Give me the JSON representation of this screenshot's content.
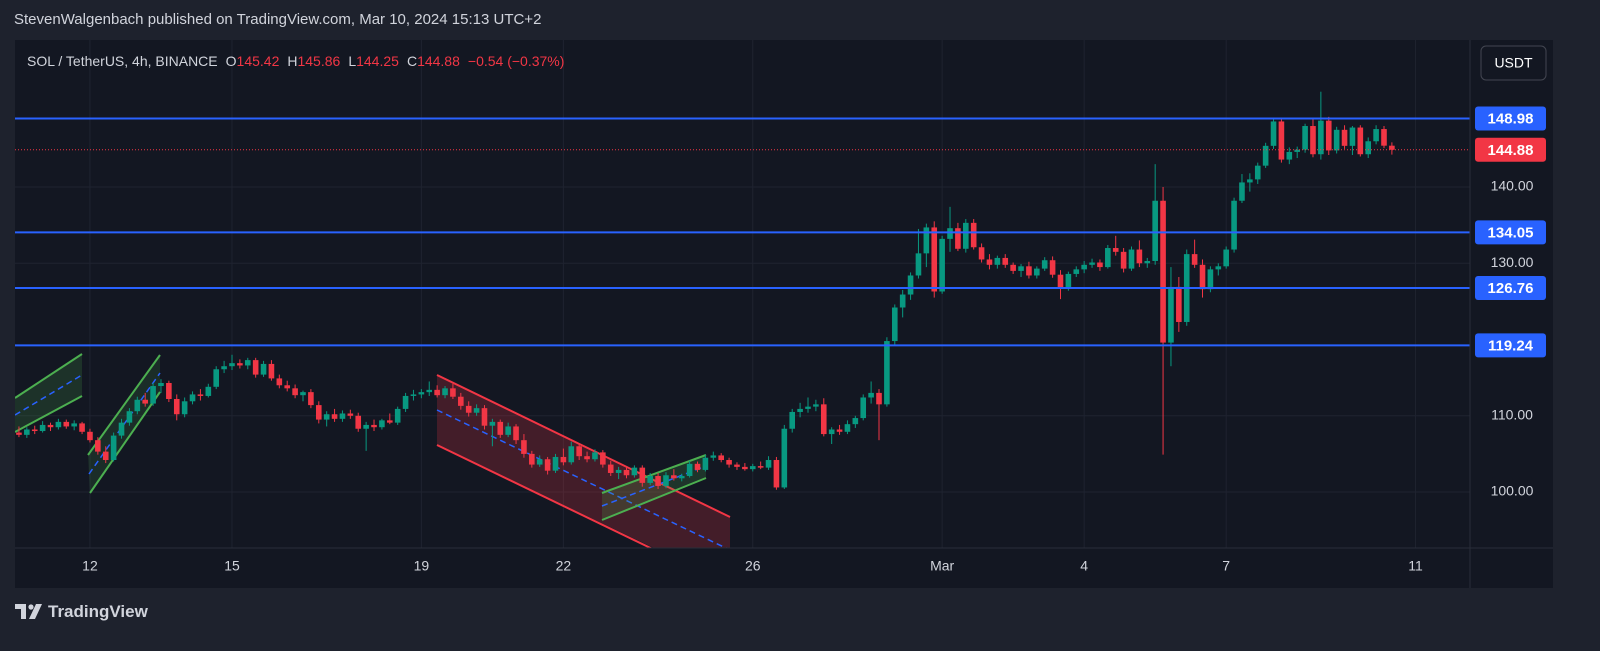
{
  "header": {
    "publisher": "StevenWalgenbach published on TradingView.com, Mar 10, 2024 15:13 UTC+2"
  },
  "chart_data": {
    "type": "candlestick",
    "legend": {
      "symbol": "SOL / TetherUS, 4h, BINANCE",
      "open_label": "O",
      "open": 145.42,
      "high_label": "H",
      "high": 145.86,
      "low_label": "L",
      "low": 144.25,
      "close_label": "C",
      "close": 144.88,
      "change": "−0.54 (−0.37%)"
    },
    "currency": "USDT",
    "up_color": "#089981",
    "down_color": "#f23645",
    "level_color": "#2962ff",
    "grid": true,
    "xlim": [
      0,
      184.4
    ],
    "xticks": [
      {
        "value": 9.5,
        "label": "12"
      },
      {
        "value": 27.5,
        "label": "15"
      },
      {
        "value": 51.5,
        "label": "19"
      },
      {
        "value": 69.5,
        "label": "22"
      },
      {
        "value": 93.5,
        "label": "26"
      },
      {
        "value": 117.5,
        "label": "Mar"
      },
      {
        "value": 135.5,
        "label": "4"
      },
      {
        "value": 153.5,
        "label": "7"
      },
      {
        "value": 177.5,
        "label": "11"
      }
    ],
    "ylim": [
      92.66,
      159.28
    ],
    "yticks": [
      {
        "value": 100,
        "label": "100.00"
      },
      {
        "value": 110,
        "label": "110.00"
      },
      {
        "value": 130,
        "label": "130.00"
      },
      {
        "value": 140,
        "label": "140.00"
      }
    ],
    "levels": [
      148.98,
      134.05,
      126.76,
      119.24
    ],
    "last_price": 144.88,
    "ohlc": [
      [
        107.8,
        108.6,
        107.2,
        107.5
      ],
      [
        107.5,
        108.5,
        107.1,
        108.2
      ],
      [
        108.2,
        108.7,
        107.6,
        108.0
      ],
      [
        108.0,
        109.3,
        107.8,
        108.8
      ],
      [
        108.8,
        109.1,
        108.0,
        108.5
      ],
      [
        108.5,
        109.6,
        108.2,
        109.2
      ],
      [
        109.2,
        109.5,
        108.3,
        108.6
      ],
      [
        108.6,
        109.4,
        108.1,
        109.0
      ],
      [
        109.0,
        109.2,
        107.6,
        107.9
      ],
      [
        107.9,
        108.3,
        106.5,
        106.8
      ],
      [
        106.8,
        107.2,
        104.9,
        105.3
      ],
      [
        105.3,
        106.0,
        103.8,
        104.2
      ],
      [
        104.2,
        107.8,
        104.0,
        107.4
      ],
      [
        107.4,
        109.6,
        107.0,
        109.1
      ],
      [
        109.1,
        111.0,
        108.7,
        110.6
      ],
      [
        110.6,
        112.5,
        110.2,
        112.1
      ],
      [
        112.1,
        113.0,
        111.2,
        111.6
      ],
      [
        111.6,
        114.3,
        111.3,
        113.9
      ],
      [
        113.9,
        114.8,
        113.0,
        114.3
      ],
      [
        114.3,
        114.6,
        111.8,
        112.2
      ],
      [
        112.2,
        112.8,
        109.4,
        110.2
      ],
      [
        110.2,
        112.4,
        109.8,
        111.9
      ],
      [
        111.9,
        113.2,
        111.5,
        112.8
      ],
      [
        112.8,
        113.5,
        112.0,
        112.6
      ],
      [
        112.6,
        114.2,
        112.4,
        113.8
      ],
      [
        113.8,
        116.5,
        113.5,
        116.1
      ],
      [
        116.1,
        117.2,
        115.6,
        116.5
      ],
      [
        116.5,
        118.0,
        116.0,
        116.9
      ],
      [
        116.9,
        117.4,
        116.2,
        116.6
      ],
      [
        116.6,
        117.6,
        116.1,
        117.3
      ],
      [
        117.3,
        117.6,
        115.0,
        115.4
      ],
      [
        115.4,
        117.2,
        115.1,
        116.8
      ],
      [
        116.8,
        117.3,
        114.6,
        114.9
      ],
      [
        114.9,
        115.4,
        113.6,
        114.0
      ],
      [
        114.0,
        114.6,
        113.2,
        113.6
      ],
      [
        113.6,
        114.1,
        112.3,
        112.7
      ],
      [
        112.7,
        113.3,
        111.9,
        113.1
      ],
      [
        113.1,
        113.5,
        111.0,
        111.4
      ],
      [
        111.4,
        111.9,
        109.0,
        109.5
      ],
      [
        109.5,
        110.6,
        108.6,
        110.2
      ],
      [
        110.2,
        110.9,
        109.2,
        109.6
      ],
      [
        109.6,
        110.7,
        109.2,
        110.3
      ],
      [
        110.3,
        110.8,
        109.6,
        110.0
      ],
      [
        110.0,
        110.4,
        107.9,
        108.3
      ],
      [
        108.3,
        109.2,
        105.4,
        108.8
      ],
      [
        108.8,
        109.5,
        108.0,
        108.5
      ],
      [
        108.5,
        109.6,
        108.2,
        109.4
      ],
      [
        109.4,
        110.3,
        108.9,
        109.1
      ],
      [
        109.1,
        111.2,
        108.8,
        110.9
      ],
      [
        110.9,
        113.0,
        110.5,
        112.6
      ],
      [
        112.6,
        113.4,
        112.0,
        112.8
      ],
      [
        112.8,
        113.5,
        112.3,
        113.1
      ],
      [
        113.1,
        114.5,
        112.6,
        113.4
      ],
      [
        113.4,
        114.0,
        112.4,
        112.7
      ],
      [
        112.7,
        113.9,
        112.3,
        113.6
      ],
      [
        113.6,
        114.2,
        112.2,
        112.5
      ],
      [
        112.5,
        113.0,
        110.8,
        111.3
      ],
      [
        111.3,
        111.9,
        109.9,
        110.4
      ],
      [
        110.4,
        111.5,
        110.0,
        111.0
      ],
      [
        111.0,
        111.4,
        108.2,
        108.7
      ],
      [
        108.7,
        109.6,
        106.0,
        109.2
      ],
      [
        109.2,
        109.5,
        107.1,
        107.5
      ],
      [
        107.5,
        109.1,
        107.2,
        108.6
      ],
      [
        108.6,
        108.9,
        106.3,
        106.8
      ],
      [
        106.8,
        107.6,
        104.5,
        105.0
      ],
      [
        105.0,
        105.4,
        103.2,
        103.6
      ],
      [
        103.6,
        104.8,
        103.3,
        104.3
      ],
      [
        104.3,
        104.6,
        102.3,
        102.8
      ],
      [
        102.8,
        105.0,
        102.5,
        104.6
      ],
      [
        104.6,
        105.7,
        103.5,
        103.9
      ],
      [
        103.9,
        106.6,
        103.6,
        106.0
      ],
      [
        106.0,
        106.4,
        104.2,
        104.7
      ],
      [
        104.7,
        105.3,
        103.9,
        104.3
      ],
      [
        104.3,
        105.6,
        104.0,
        105.2
      ],
      [
        105.2,
        105.5,
        103.2,
        103.6
      ],
      [
        103.6,
        104.1,
        102.1,
        102.5
      ],
      [
        102.5,
        103.3,
        101.7,
        102.9
      ],
      [
        102.9,
        103.4,
        101.8,
        102.2
      ],
      [
        102.2,
        103.5,
        101.9,
        103.2
      ],
      [
        103.2,
        103.5,
        100.7,
        101.2
      ],
      [
        101.2,
        102.5,
        100.9,
        102.1
      ],
      [
        102.1,
        102.5,
        100.4,
        100.8
      ],
      [
        100.8,
        102.6,
        100.5,
        102.2
      ],
      [
        102.2,
        103.0,
        101.5,
        101.8
      ],
      [
        101.8,
        102.4,
        101.4,
        102.1
      ],
      [
        102.1,
        104.1,
        101.9,
        103.7
      ],
      [
        103.7,
        104.0,
        102.6,
        102.9
      ],
      [
        102.9,
        104.9,
        102.7,
        104.5
      ],
      [
        104.5,
        105.3,
        104.1,
        104.8
      ],
      [
        104.8,
        105.1,
        103.9,
        104.2
      ],
      [
        104.2,
        104.5,
        103.2,
        103.6
      ],
      [
        103.6,
        103.9,
        102.9,
        103.3
      ],
      [
        103.3,
        103.8,
        102.8,
        103.0
      ],
      [
        103.0,
        103.7,
        102.7,
        103.4
      ],
      [
        103.4,
        104.0,
        103.0,
        103.2
      ],
      [
        103.2,
        104.7,
        102.9,
        104.2
      ],
      [
        104.2,
        104.6,
        100.3,
        100.6
      ],
      [
        100.6,
        108.8,
        100.4,
        108.3
      ],
      [
        108.3,
        110.9,
        107.8,
        110.5
      ],
      [
        110.5,
        111.7,
        109.8,
        110.9
      ],
      [
        110.9,
        112.4,
        110.4,
        111.2
      ],
      [
        111.2,
        112.1,
        110.6,
        111.5
      ],
      [
        111.5,
        112.3,
        107.3,
        107.6
      ],
      [
        107.6,
        108.5,
        106.3,
        108.2
      ],
      [
        108.2,
        108.8,
        107.5,
        107.9
      ],
      [
        107.9,
        109.4,
        107.6,
        108.9
      ],
      [
        108.9,
        110.0,
        108.4,
        109.7
      ],
      [
        109.7,
        112.8,
        109.4,
        112.4
      ],
      [
        112.4,
        114.5,
        111.6,
        113.0
      ],
      [
        113.0,
        113.5,
        106.8,
        111.5
      ],
      [
        111.5,
        120.3,
        111.2,
        119.8
      ],
      [
        119.8,
        124.6,
        119.2,
        124.2
      ],
      [
        124.2,
        126.5,
        122.9,
        125.9
      ],
      [
        125.9,
        128.8,
        125.2,
        128.4
      ],
      [
        128.4,
        134.5,
        128.0,
        131.3
      ],
      [
        131.3,
        135.2,
        129.5,
        134.7
      ],
      [
        134.7,
        135.5,
        125.5,
        126.3
      ],
      [
        126.3,
        133.6,
        126.0,
        133.2
      ],
      [
        133.2,
        137.4,
        131.5,
        134.6
      ],
      [
        134.6,
        135.3,
        131.6,
        131.9
      ],
      [
        131.9,
        135.8,
        131.4,
        135.3
      ],
      [
        135.3,
        135.8,
        131.8,
        132.1
      ],
      [
        132.1,
        132.6,
        130.1,
        130.5
      ],
      [
        130.5,
        131.2,
        129.2,
        129.8
      ],
      [
        129.8,
        131.0,
        129.3,
        130.7
      ],
      [
        130.7,
        131.2,
        129.4,
        129.8
      ],
      [
        129.8,
        130.1,
        128.6,
        129.0
      ],
      [
        129.0,
        129.9,
        128.2,
        129.6
      ],
      [
        129.6,
        130.2,
        128.0,
        128.4
      ],
      [
        128.4,
        129.6,
        128.0,
        129.3
      ],
      [
        129.3,
        130.8,
        129.0,
        130.4
      ],
      [
        130.4,
        130.9,
        128.1,
        128.5
      ],
      [
        128.5,
        129.1,
        125.3,
        126.8
      ],
      [
        126.8,
        128.9,
        126.4,
        128.6
      ],
      [
        128.6,
        129.6,
        128.2,
        129.2
      ],
      [
        129.2,
        130.3,
        128.7,
        129.8
      ],
      [
        129.8,
        130.6,
        129.4,
        130.1
      ],
      [
        130.1,
        130.5,
        129.0,
        129.5
      ],
      [
        129.5,
        132.4,
        129.3,
        132.0
      ],
      [
        132.0,
        133.6,
        131.0,
        131.5
      ],
      [
        131.5,
        132.0,
        128.8,
        129.3
      ],
      [
        129.3,
        132.2,
        129.0,
        131.8
      ],
      [
        131.8,
        133.0,
        129.5,
        130.0
      ],
      [
        130.0,
        130.7,
        129.4,
        130.3
      ],
      [
        130.3,
        143.0,
        129.8,
        138.2
      ],
      [
        138.2,
        140.0,
        104.9,
        119.6
      ],
      [
        119.6,
        129.5,
        116.5,
        126.9
      ],
      [
        126.9,
        128.2,
        121.0,
        122.3
      ],
      [
        122.3,
        131.8,
        121.8,
        131.2
      ],
      [
        131.2,
        133.1,
        129.4,
        129.8
      ],
      [
        129.8,
        130.5,
        125.5,
        126.6
      ],
      [
        126.6,
        129.6,
        126.2,
        129.2
      ],
      [
        129.2,
        130.0,
        128.4,
        129.6
      ],
      [
        129.6,
        132.2,
        129.3,
        131.8
      ],
      [
        131.8,
        138.6,
        131.4,
        138.2
      ],
      [
        138.2,
        141.7,
        137.9,
        140.6
      ],
      [
        140.6,
        141.8,
        139.4,
        141.0
      ],
      [
        141.0,
        143.2,
        140.4,
        142.8
      ],
      [
        142.8,
        145.8,
        142.5,
        145.4
      ],
      [
        145.4,
        148.9,
        145.0,
        148.6
      ],
      [
        148.6,
        148.9,
        143.2,
        143.6
      ],
      [
        143.6,
        145.2,
        143.0,
        144.6
      ],
      [
        144.6,
        145.3,
        143.8,
        144.9
      ],
      [
        144.9,
        148.3,
        144.5,
        148.0
      ],
      [
        148.0,
        149.0,
        143.9,
        144.3
      ],
      [
        144.3,
        152.5,
        143.6,
        148.7
      ],
      [
        148.7,
        149.2,
        144.2,
        144.8
      ],
      [
        144.8,
        147.9,
        144.4,
        147.5
      ],
      [
        147.5,
        148.1,
        145.0,
        145.4
      ],
      [
        145.4,
        148.0,
        144.2,
        147.8
      ],
      [
        147.8,
        148.1,
        144.0,
        144.3
      ],
      [
        144.3,
        146.5,
        143.8,
        146.0
      ],
      [
        146.0,
        148.1,
        145.6,
        147.6
      ],
      [
        147.6,
        148.0,
        145.1,
        145.42
      ],
      [
        145.42,
        145.86,
        144.25,
        144.88
      ]
    ]
  },
  "footer": {
    "brand": "TradingView"
  }
}
